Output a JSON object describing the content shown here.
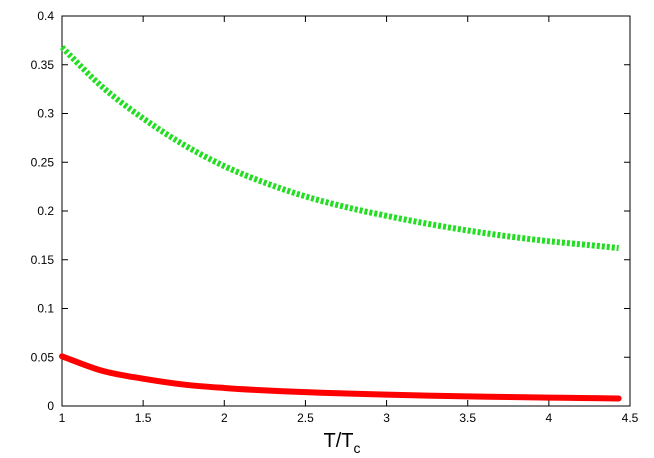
{
  "chart_data": {
    "type": "line",
    "title": "",
    "xlabel_main": "T/T",
    "xlabel_sub": "c",
    "ylabel": "",
    "xlim": [
      1,
      4.5
    ],
    "ylim": [
      0,
      0.4
    ],
    "x_ticks": [
      "1",
      "1.5",
      "2",
      "2.5",
      "3",
      "3.5",
      "4",
      "4.5"
    ],
    "y_ticks": [
      "0",
      "0.05",
      "0.1",
      "0.15",
      "0.2",
      "0.25",
      "0.3",
      "0.35",
      "0.4"
    ],
    "grid": false,
    "legend": "none",
    "series": [
      {
        "color": "#22dd22",
        "style": "dotted",
        "x": [
          1.0,
          1.25,
          1.5,
          1.75,
          2.0,
          2.25,
          2.5,
          2.75,
          3.0,
          3.25,
          3.5,
          3.75,
          4.0,
          4.25,
          4.43
        ],
        "y": [
          0.368,
          0.327,
          0.295,
          0.268,
          0.246,
          0.229,
          0.215,
          0.204,
          0.195,
          0.187,
          0.18,
          0.174,
          0.169,
          0.165,
          0.162
        ]
      },
      {
        "color": "#ff0000",
        "style": "solid",
        "x": [
          1.0,
          1.25,
          1.5,
          1.75,
          2.0,
          2.25,
          2.5,
          2.75,
          3.0,
          3.25,
          3.5,
          3.75,
          4.0,
          4.25,
          4.43
        ],
        "y": [
          0.051,
          0.036,
          0.028,
          0.022,
          0.0185,
          0.016,
          0.0142,
          0.0128,
          0.0117,
          0.0107,
          0.0099,
          0.0092,
          0.0086,
          0.0081,
          0.0077
        ]
      }
    ]
  }
}
